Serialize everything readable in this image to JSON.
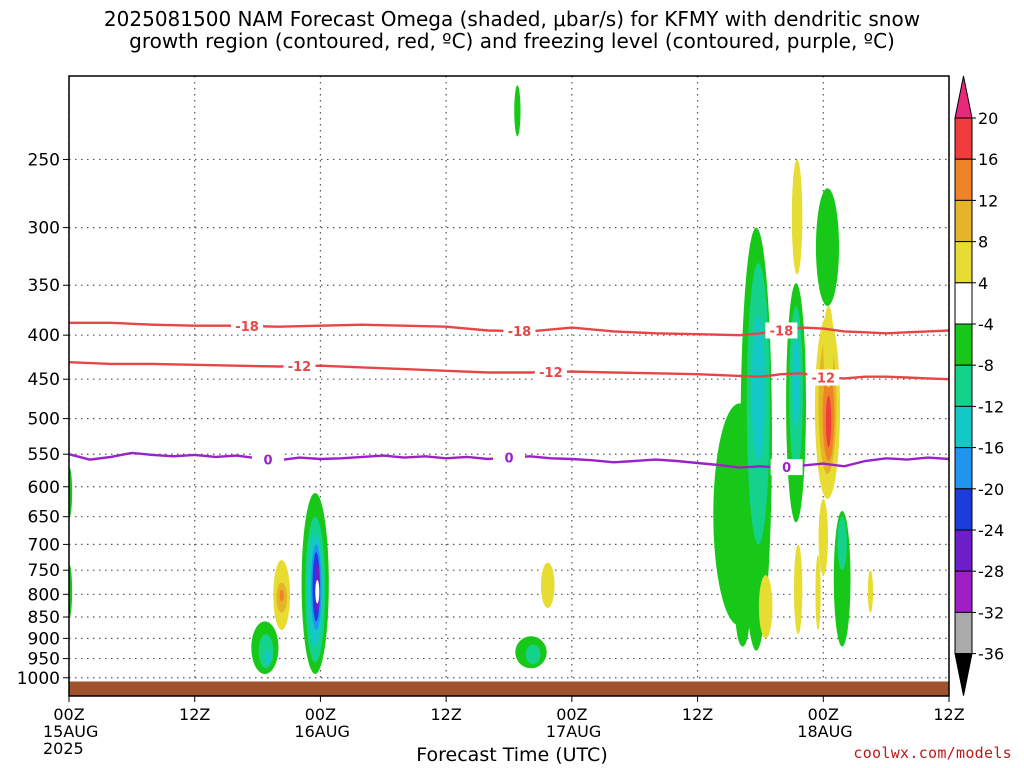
{
  "title": {
    "line1": "2025081500 NAM Forecast Omega (shaded, μbar/s) for KFMY with dendritic snow",
    "line2": "growth region (contoured, red, ºC) and freezing level (contoured, purple, ºC)"
  },
  "credit": "coolwx.com/models",
  "chart_data": {
    "type": "heatmap",
    "xlabel": "Forecast Time (UTC)",
    "ylabel": "",
    "x_unit": "forecast hour from 2025081500",
    "xlim": [
      0,
      84
    ],
    "y_scale": "log",
    "ylim": [
      1050,
      200
    ],
    "y_ticks": [
      250,
      300,
      350,
      400,
      450,
      500,
      550,
      600,
      650,
      700,
      750,
      800,
      850,
      900,
      950,
      1000
    ],
    "x_ticks": [
      {
        "hour": 0,
        "lines": [
          "00Z",
          "15AUG",
          "2025"
        ]
      },
      {
        "hour": 12,
        "lines": [
          "12Z"
        ]
      },
      {
        "hour": 24,
        "lines": [
          "00Z",
          "16AUG"
        ]
      },
      {
        "hour": 36,
        "lines": [
          "12Z"
        ]
      },
      {
        "hour": 48,
        "lines": [
          "00Z",
          "17AUG"
        ]
      },
      {
        "hour": 60,
        "lines": [
          "12Z"
        ]
      },
      {
        "hour": 72,
        "lines": [
          "00Z",
          "18AUG"
        ]
      },
      {
        "hour": 84,
        "lines": [
          "12Z"
        ]
      }
    ],
    "grid": true,
    "ground_fill_below_hPa": 1010,
    "ground_color": "#a0522d",
    "colorbar": {
      "labels": [
        "20",
        "16",
        "12",
        "8",
        "4",
        "-4",
        "-8",
        "-12",
        "-16",
        "-20",
        "-24",
        "-28",
        "-32",
        "-36"
      ],
      "colors": [
        "#e8287a",
        "#f03c3c",
        "#f08228",
        "#e6b428",
        "#e6dc32",
        "#ffffff",
        "#18c818",
        "#14d28c",
        "#14c8c8",
        "#1e96f0",
        "#1e3cdc",
        "#6e1ec8",
        "#a01ec8",
        "#aaaaaa",
        "#000000"
      ]
    },
    "contours": [
      {
        "name": "-18",
        "color": "#e84646",
        "points": [
          [
            0,
            387
          ],
          [
            4,
            387
          ],
          [
            8,
            389
          ],
          [
            12,
            390
          ],
          [
            16,
            390
          ],
          [
            20,
            391
          ],
          [
            24,
            390
          ],
          [
            28,
            389
          ],
          [
            32,
            390
          ],
          [
            36,
            391
          ],
          [
            40,
            395
          ],
          [
            44,
            396
          ],
          [
            48,
            392
          ],
          [
            52,
            396
          ],
          [
            56,
            398
          ],
          [
            60,
            399
          ],
          [
            64,
            400
          ],
          [
            66,
            398
          ],
          [
            68,
            395
          ],
          [
            70,
            392
          ],
          [
            72,
            393
          ],
          [
            74,
            396
          ],
          [
            76,
            397
          ],
          [
            78,
            398
          ],
          [
            80,
            397
          ],
          [
            82,
            396
          ],
          [
            84,
            395
          ]
        ],
        "labels": [
          {
            "x": 17,
            "text": "-18"
          },
          {
            "x": 43,
            "text": "-18"
          },
          {
            "x": 68,
            "text": "-18"
          }
        ]
      },
      {
        "name": "-12",
        "color": "#e84646",
        "points": [
          [
            0,
            430
          ],
          [
            4,
            432
          ],
          [
            8,
            432
          ],
          [
            12,
            433
          ],
          [
            16,
            434
          ],
          [
            20,
            435
          ],
          [
            24,
            434
          ],
          [
            28,
            436
          ],
          [
            32,
            438
          ],
          [
            36,
            440
          ],
          [
            40,
            442
          ],
          [
            44,
            442
          ],
          [
            48,
            441
          ],
          [
            52,
            442
          ],
          [
            56,
            443
          ],
          [
            60,
            444
          ],
          [
            64,
            446
          ],
          [
            66,
            447
          ],
          [
            68,
            444
          ],
          [
            70,
            443
          ],
          [
            72,
            448
          ],
          [
            74,
            449
          ],
          [
            76,
            447
          ],
          [
            78,
            447
          ],
          [
            80,
            448
          ],
          [
            82,
            449
          ],
          [
            84,
            450
          ]
        ],
        "labels": [
          {
            "x": 22,
            "text": "-12"
          },
          {
            "x": 46,
            "text": "-12"
          },
          {
            "x": 72,
            "text": "-12"
          }
        ]
      },
      {
        "name": "0",
        "color": "#9a22c8",
        "points": [
          [
            0,
            550
          ],
          [
            2,
            558
          ],
          [
            4,
            554
          ],
          [
            6,
            548
          ],
          [
            8,
            551
          ],
          [
            10,
            553
          ],
          [
            12,
            551
          ],
          [
            14,
            554
          ],
          [
            16,
            552
          ],
          [
            18,
            556
          ],
          [
            20,
            559
          ],
          [
            22,
            555
          ],
          [
            24,
            557
          ],
          [
            26,
            556
          ],
          [
            28,
            554
          ],
          [
            30,
            552
          ],
          [
            32,
            555
          ],
          [
            34,
            553
          ],
          [
            36,
            556
          ],
          [
            38,
            554
          ],
          [
            40,
            557
          ],
          [
            42,
            555
          ],
          [
            44,
            553
          ],
          [
            46,
            556
          ],
          [
            48,
            557
          ],
          [
            50,
            559
          ],
          [
            52,
            562
          ],
          [
            54,
            560
          ],
          [
            56,
            558
          ],
          [
            58,
            560
          ],
          [
            60,
            563
          ],
          [
            62,
            566
          ],
          [
            64,
            570
          ],
          [
            66,
            568
          ],
          [
            68,
            570
          ],
          [
            70,
            567
          ],
          [
            72,
            564
          ],
          [
            74,
            568
          ],
          [
            76,
            560
          ],
          [
            78,
            556
          ],
          [
            80,
            558
          ],
          [
            82,
            555
          ],
          [
            84,
            557
          ]
        ],
        "labels": [
          {
            "x": 19,
            "text": "0"
          },
          {
            "x": 42,
            "text": "0"
          },
          {
            "x": 68.5,
            "text": "0"
          }
        ]
      }
    ],
    "omega_cells": [
      {
        "x": 0.05,
        "p": 600,
        "w": 0.5,
        "top": 570,
        "bot": 650,
        "fill": "#18c818"
      },
      {
        "x": 0.05,
        "p": 790,
        "w": 0.5,
        "top": 740,
        "bot": 850,
        "fill": "#18c818"
      },
      {
        "x": 18.7,
        "p": 900,
        "w": 2.6,
        "top": 860,
        "bot": 990,
        "fill": "#18c818"
      },
      {
        "x": 18.8,
        "p": 930,
        "w": 1.4,
        "top": 890,
        "bot": 975,
        "fill": "#14d28c"
      },
      {
        "x": 19.0,
        "p": 950,
        "w": 0.6,
        "top": 930,
        "bot": 965,
        "fill": "#14c8c8"
      },
      {
        "x": 20.3,
        "p": 810,
        "w": 1.6,
        "top": 730,
        "bot": 880,
        "fill": "#e6dc32"
      },
      {
        "x": 20.3,
        "p": 800,
        "w": 1.0,
        "top": 775,
        "bot": 840,
        "fill": "#e6b428"
      },
      {
        "x": 20.3,
        "p": 800,
        "w": 0.4,
        "top": 790,
        "bot": 815,
        "fill": "#f08228"
      },
      {
        "x": 23.5,
        "p": 800,
        "w": 2.6,
        "top": 610,
        "bot": 990,
        "fill": "#18c818"
      },
      {
        "x": 23.5,
        "p": 800,
        "w": 1.9,
        "top": 650,
        "bot": 960,
        "fill": "#14d28c"
      },
      {
        "x": 23.5,
        "p": 790,
        "w": 1.4,
        "top": 680,
        "bot": 920,
        "fill": "#14c8c8"
      },
      {
        "x": 23.6,
        "p": 780,
        "w": 1.0,
        "top": 700,
        "bot": 880,
        "fill": "#1e96f0"
      },
      {
        "x": 23.6,
        "p": 780,
        "w": 0.7,
        "top": 715,
        "bot": 860,
        "fill": "#1e3cdc"
      },
      {
        "x": 23.7,
        "p": 790,
        "w": 0.45,
        "top": 735,
        "bot": 840,
        "fill": "#6e1ec8"
      },
      {
        "x": 23.7,
        "p": 790,
        "w": 0.18,
        "top": 770,
        "bot": 820,
        "fill": "#ffffff"
      },
      {
        "x": 42.8,
        "p": 215,
        "w": 0.6,
        "top": 205,
        "bot": 235,
        "fill": "#18c818"
      },
      {
        "x": 45.7,
        "p": 780,
        "w": 1.3,
        "top": 735,
        "bot": 830,
        "fill": "#e6dc32"
      },
      {
        "x": 44.1,
        "p": 930,
        "w": 3.0,
        "top": 895,
        "bot": 975,
        "fill": "#18c818"
      },
      {
        "x": 44.3,
        "p": 940,
        "w": 1.4,
        "top": 915,
        "bot": 965,
        "fill": "#14d28c"
      },
      {
        "x": 64.0,
        "p": 590,
        "w": 5.0,
        "top": 480,
        "bot": 870,
        "fill": "#18c818"
      },
      {
        "x": 65.6,
        "p": 500,
        "w": 3.0,
        "top": 300,
        "bot": 930,
        "fill": "#18c818"
      },
      {
        "x": 65.8,
        "p": 470,
        "w": 2.2,
        "top": 330,
        "bot": 700,
        "fill": "#14d28c"
      },
      {
        "x": 65.8,
        "p": 440,
        "w": 1.3,
        "top": 380,
        "bot": 560,
        "fill": "#14c8c8"
      },
      {
        "x": 64.3,
        "p": 810,
        "w": 1.4,
        "top": 760,
        "bot": 920,
        "fill": "#18c818"
      },
      {
        "x": 66.5,
        "p": 830,
        "w": 1.3,
        "top": 760,
        "bot": 900,
        "fill": "#e6dc32"
      },
      {
        "x": 69.4,
        "p": 500,
        "w": 1.9,
        "top": 348,
        "bot": 660,
        "fill": "#18c818"
      },
      {
        "x": 69.4,
        "p": 470,
        "w": 1.3,
        "top": 370,
        "bot": 580,
        "fill": "#14d28c"
      },
      {
        "x": 69.4,
        "p": 450,
        "w": 0.7,
        "top": 400,
        "bot": 510,
        "fill": "#14c8c8"
      },
      {
        "x": 69.5,
        "p": 280,
        "w": 1.0,
        "top": 250,
        "bot": 340,
        "fill": "#e6dc32"
      },
      {
        "x": 69.6,
        "p": 800,
        "w": 0.8,
        "top": 700,
        "bot": 890,
        "fill": "#e6dc32"
      },
      {
        "x": 72.4,
        "p": 300,
        "w": 2.2,
        "top": 270,
        "bot": 370,
        "fill": "#18c818"
      },
      {
        "x": 72.4,
        "p": 480,
        "w": 2.4,
        "top": 380,
        "bot": 620,
        "fill": "#e6dc32"
      },
      {
        "x": 72.4,
        "p": 490,
        "w": 1.7,
        "top": 400,
        "bot": 580,
        "fill": "#e6b428"
      },
      {
        "x": 72.5,
        "p": 500,
        "w": 1.1,
        "top": 440,
        "bot": 560,
        "fill": "#f08228"
      },
      {
        "x": 72.5,
        "p": 500,
        "w": 0.5,
        "top": 470,
        "bot": 540,
        "fill": "#f03c3c"
      },
      {
        "x": 72.5,
        "p": 420,
        "w": 1.0,
        "top": 370,
        "bot": 460,
        "fill": "#e6dc32"
      },
      {
        "x": 72.0,
        "p": 680,
        "w": 0.9,
        "top": 620,
        "bot": 760,
        "fill": "#e6dc32"
      },
      {
        "x": 73.8,
        "p": 760,
        "w": 1.6,
        "top": 640,
        "bot": 920,
        "fill": "#18c818"
      },
      {
        "x": 73.8,
        "p": 690,
        "w": 0.9,
        "top": 650,
        "bot": 750,
        "fill": "#14d28c"
      },
      {
        "x": 76.5,
        "p": 790,
        "w": 0.5,
        "top": 750,
        "bot": 840,
        "fill": "#e6dc32"
      },
      {
        "x": 71.5,
        "p": 800,
        "w": 0.5,
        "top": 720,
        "bot": 880,
        "fill": "#e6dc32"
      }
    ]
  }
}
